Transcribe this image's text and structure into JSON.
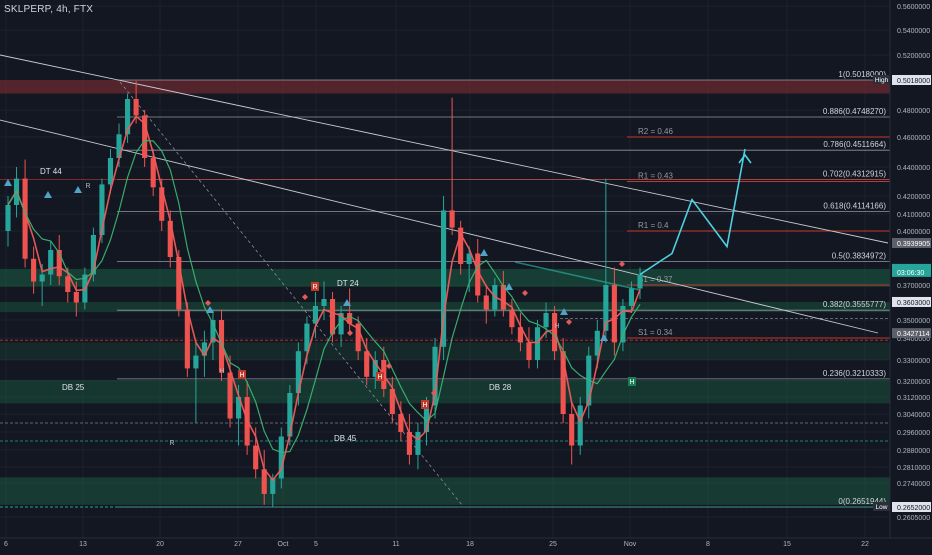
{
  "header": {
    "symbol": "SKLPERP, 4h, FTX"
  },
  "colors": {
    "background": "#131722",
    "grid": "#1e222d",
    "candle_up": "#26a69a",
    "candle_down": "#ef5350",
    "green_zone": "#1b5e43",
    "red_zone": "#6b2a32",
    "fib_line": "#b2b5be",
    "pivot_red": "#c0392b",
    "green_dash": "#26a69a",
    "projection": "#4dd0e1",
    "ma_red": "#f05a5a",
    "ma_green": "#3cb371"
  },
  "chart_data": {
    "type": "candlestick",
    "title": "SKLPERP, 4h, FTX",
    "x_ticks": [
      "6",
      "13",
      "20",
      "27",
      "Oct",
      "5",
      "11",
      "18",
      "25",
      "Nov",
      "8",
      "15",
      "22"
    ],
    "y_ticks": [
      0.56,
      0.54,
      0.52,
      0.48,
      0.46,
      0.44,
      0.42,
      0.41,
      0.4,
      0.37,
      0.35,
      0.34,
      0.33,
      0.32,
      0.312,
      0.304,
      0.296,
      0.288,
      0.281,
      0.274,
      0.2605
    ],
    "y_tick_labels": [
      "0.5600000",
      "0.5400000",
      "0.5200000",
      "0.4800000",
      "0.4600000",
      "0.4400000",
      "0.4200000",
      "0.4100000",
      "0.4000000",
      "0.3700000",
      "0.3500000",
      "0.3400000",
      "0.3300000",
      "0.3200000",
      "0.3120000",
      "0.3040000",
      "0.2960000",
      "0.2880000",
      "0.2810000",
      "0.2740000",
      "0.2605000"
    ],
    "ylim": [
      0.2605,
      0.56
    ],
    "price_tags": [
      {
        "label": "0.5018000",
        "value": 0.5018,
        "style": "white"
      },
      {
        "label": "High",
        "value": 0.5018,
        "style": "tag"
      },
      {
        "label": "0.3939905",
        "value": 0.394,
        "style": "gray"
      },
      {
        "label": "0.3792000",
        "value": 0.3792,
        "style": "green"
      },
      {
        "label": "03:06:30",
        "value": 0.3775,
        "style": "green"
      },
      {
        "label": "0.3603000",
        "value": 0.3603,
        "style": "white"
      },
      {
        "label": "0.3427114",
        "value": 0.3427,
        "style": "gray"
      },
      {
        "label": "0.2652000",
        "value": 0.2652,
        "style": "white"
      },
      {
        "label": "Low",
        "value": 0.2652,
        "style": "tag"
      }
    ],
    "fib_levels": [
      {
        "label": "1(0.5018000)",
        "value": 0.5018
      },
      {
        "label": "0.886(0.4748270)",
        "value": 0.4748
      },
      {
        "label": "0.786(0.4511664)",
        "value": 0.4512
      },
      {
        "label": "0.702(0.4312915)",
        "value": 0.4313
      },
      {
        "label": "0.618(0.4114166)",
        "value": 0.4114
      },
      {
        "label": "0.5(0.3834972)",
        "value": 0.3835
      },
      {
        "label": "0.382(0.3555777)",
        "value": 0.3556
      },
      {
        "label": "0.236(0.3210333)",
        "value": 0.321
      },
      {
        "label": "0(0.2651944)",
        "value": 0.2652
      }
    ],
    "pivots": [
      {
        "label": "R2 = 0.46",
        "value": 0.46
      },
      {
        "label": "R1 = 0.43",
        "value": 0.43
      },
      {
        "label": "R1 = 0.4",
        "value": 0.4
      },
      {
        "label": "S1 = 0.37",
        "value": 0.37
      },
      {
        "label": "S1 = 0.34",
        "value": 0.34
      }
    ],
    "annotations": [
      "DT 44",
      "DT 24",
      "DB 25",
      "DB 28",
      "DB 45"
    ],
    "series": [
      {
        "name": "",
        "values": [
          [
            0.4,
            0.42,
            0.392,
            0.415
          ],
          [
            0.415,
            0.44,
            0.408,
            0.432
          ],
          [
            0.432,
            0.445,
            0.38,
            0.385
          ],
          [
            0.385,
            0.392,
            0.365,
            0.372
          ],
          [
            0.372,
            0.382,
            0.358,
            0.376
          ],
          [
            0.376,
            0.395,
            0.37,
            0.39
          ],
          [
            0.39,
            0.398,
            0.37,
            0.375
          ],
          [
            0.375,
            0.38,
            0.36,
            0.366
          ],
          [
            0.366,
            0.372,
            0.352,
            0.36
          ],
          [
            0.36,
            0.38,
            0.356,
            0.376
          ],
          [
            0.376,
            0.402,
            0.372,
            0.398
          ],
          [
            0.398,
            0.432,
            0.394,
            0.428
          ],
          [
            0.428,
            0.452,
            0.422,
            0.446
          ],
          [
            0.446,
            0.47,
            0.44,
            0.462
          ],
          [
            0.462,
            0.492,
            0.456,
            0.488
          ],
          [
            0.488,
            0.501,
            0.47,
            0.476
          ],
          [
            0.476,
            0.48,
            0.44,
            0.446
          ],
          [
            0.446,
            0.452,
            0.42,
            0.426
          ],
          [
            0.426,
            0.432,
            0.4,
            0.406
          ],
          [
            0.406,
            0.412,
            0.38,
            0.386
          ],
          [
            0.386,
            0.39,
            0.352,
            0.356
          ],
          [
            0.356,
            0.36,
            0.322,
            0.326
          ],
          [
            0.326,
            0.338,
            0.3,
            0.332
          ],
          [
            0.332,
            0.344,
            0.322,
            0.338
          ],
          [
            0.338,
            0.356,
            0.33,
            0.35
          ],
          [
            0.35,
            0.356,
            0.32,
            0.324
          ],
          [
            0.324,
            0.332,
            0.298,
            0.302
          ],
          [
            0.302,
            0.318,
            0.29,
            0.312
          ],
          [
            0.312,
            0.32,
            0.286,
            0.29
          ],
          [
            0.29,
            0.298,
            0.276,
            0.28
          ],
          [
            0.28,
            0.288,
            0.266,
            0.27
          ],
          [
            0.27,
            0.278,
            0.265,
            0.276
          ],
          [
            0.276,
            0.298,
            0.272,
            0.294
          ],
          [
            0.294,
            0.318,
            0.29,
            0.314
          ],
          [
            0.314,
            0.338,
            0.308,
            0.334
          ],
          [
            0.334,
            0.352,
            0.328,
            0.348
          ],
          [
            0.348,
            0.366,
            0.34,
            0.358
          ],
          [
            0.358,
            0.372,
            0.35,
            0.362
          ],
          [
            0.362,
            0.366,
            0.338,
            0.342
          ],
          [
            0.342,
            0.358,
            0.336,
            0.354
          ],
          [
            0.354,
            0.368,
            0.344,
            0.348
          ],
          [
            0.348,
            0.352,
            0.33,
            0.334
          ],
          [
            0.334,
            0.34,
            0.318,
            0.322
          ],
          [
            0.322,
            0.334,
            0.316,
            0.33
          ],
          [
            0.33,
            0.336,
            0.312,
            0.316
          ],
          [
            0.316,
            0.322,
            0.3,
            0.304
          ],
          [
            0.304,
            0.31,
            0.292,
            0.296
          ],
          [
            0.296,
            0.304,
            0.282,
            0.286
          ],
          [
            0.286,
            0.3,
            0.28,
            0.296
          ],
          [
            0.296,
            0.312,
            0.29,
            0.308
          ],
          [
            0.308,
            0.34,
            0.302,
            0.336
          ],
          [
            0.336,
            0.42,
            0.33,
            0.412
          ],
          [
            0.412,
            0.489,
            0.398,
            0.402
          ],
          [
            0.402,
            0.406,
            0.376,
            0.382
          ],
          [
            0.382,
            0.392,
            0.366,
            0.388
          ],
          [
            0.388,
            0.396,
            0.36,
            0.364
          ],
          [
            0.364,
            0.37,
            0.348,
            0.356
          ],
          [
            0.356,
            0.374,
            0.352,
            0.37
          ],
          [
            0.37,
            0.378,
            0.352,
            0.356
          ],
          [
            0.356,
            0.362,
            0.342,
            0.346
          ],
          [
            0.346,
            0.354,
            0.334,
            0.338
          ],
          [
            0.338,
            0.346,
            0.326,
            0.33
          ],
          [
            0.33,
            0.35,
            0.326,
            0.346
          ],
          [
            0.346,
            0.36,
            0.34,
            0.354
          ],
          [
            0.354,
            0.358,
            0.33,
            0.334
          ],
          [
            0.334,
            0.34,
            0.3,
            0.304
          ],
          [
            0.304,
            0.31,
            0.282,
            0.29
          ],
          [
            0.29,
            0.312,
            0.286,
            0.308
          ],
          [
            0.308,
            0.336,
            0.302,
            0.332
          ],
          [
            0.332,
            0.35,
            0.326,
            0.344
          ],
          [
            0.344,
            0.432,
            0.338,
            0.37
          ],
          [
            0.37,
            0.38,
            0.332,
            0.338
          ],
          [
            0.338,
            0.362,
            0.334,
            0.358
          ],
          [
            0.358,
            0.372,
            0.354,
            0.368
          ],
          [
            0.368,
            0.38,
            0.362,
            0.376
          ]
        ]
      }
    ],
    "projection_path": [
      0.376,
      0.388,
      0.418,
      0.392,
      0.452
    ]
  }
}
